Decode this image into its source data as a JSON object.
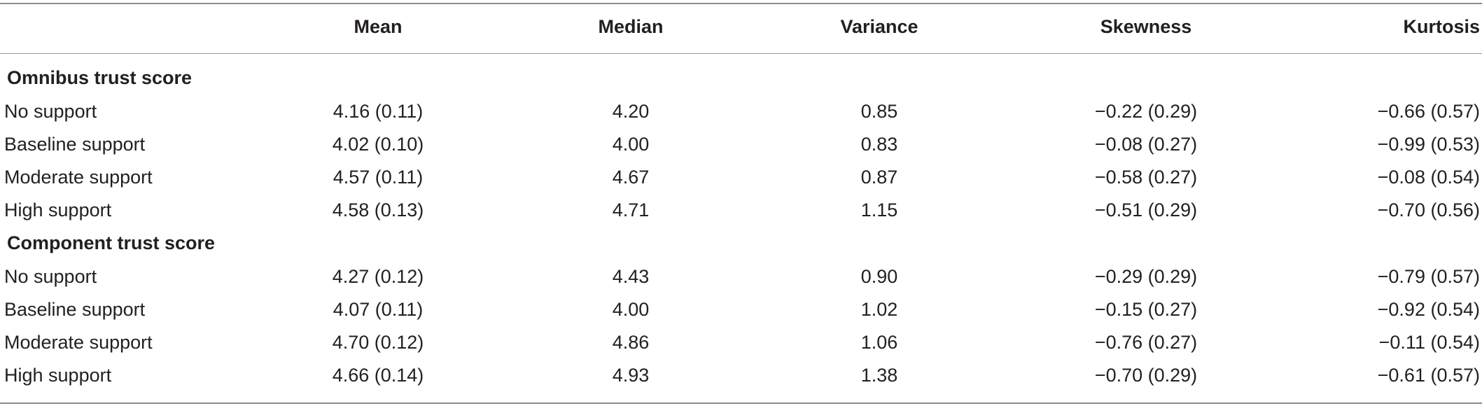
{
  "table": {
    "columns": [
      "",
      "Mean",
      "Median",
      "Variance",
      "Skewness",
      "Kurtosis"
    ],
    "sections": [
      {
        "title": "Omnibus trust score",
        "rows": [
          {
            "label": "No support",
            "mean": "4.16 (0.11)",
            "median": "4.20",
            "variance": "0.85",
            "skewness": "−0.22 (0.29)",
            "kurtosis": "−0.66 (0.57)"
          },
          {
            "label": "Baseline support",
            "mean": "4.02 (0.10)",
            "median": "4.00",
            "variance": "0.83",
            "skewness": "−0.08 (0.27)",
            "kurtosis": "−0.99 (0.53)"
          },
          {
            "label": "Moderate support",
            "mean": "4.57 (0.11)",
            "median": "4.67",
            "variance": "0.87",
            "skewness": "−0.58 (0.27)",
            "kurtosis": "−0.08 (0.54)"
          },
          {
            "label": "High support",
            "mean": "4.58 (0.13)",
            "median": "4.71",
            "variance": "1.15",
            "skewness": "−0.51 (0.29)",
            "kurtosis": "−0.70 (0.56)"
          }
        ]
      },
      {
        "title": "Component trust score",
        "rows": [
          {
            "label": "No support",
            "mean": "4.27 (0.12)",
            "median": "4.43",
            "variance": "0.90",
            "skewness": "−0.29 (0.29)",
            "kurtosis": "−0.79 (0.57)"
          },
          {
            "label": "Baseline support",
            "mean": "4.07 (0.11)",
            "median": "4.00",
            "variance": "1.02",
            "skewness": "−0.15 (0.27)",
            "kurtosis": "−0.92 (0.54)"
          },
          {
            "label": "Moderate support",
            "mean": "4.70 (0.12)",
            "median": "4.86",
            "variance": "1.06",
            "skewness": "−0.76 (0.27)",
            "kurtosis": "−0.11 (0.54)"
          },
          {
            "label": "High support",
            "mean": "4.66 (0.14)",
            "median": "4.93",
            "variance": "1.38",
            "skewness": "−0.70 (0.29)",
            "kurtosis": "−0.61 (0.57)"
          }
        ]
      }
    ]
  }
}
